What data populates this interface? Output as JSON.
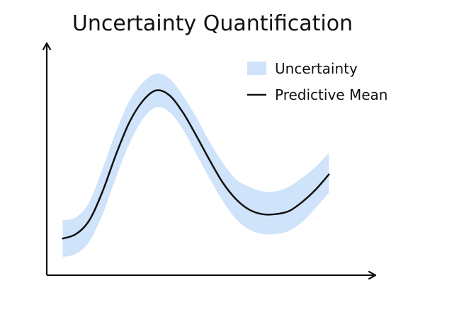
{
  "chart_data": {
    "type": "line",
    "title": "Uncertainty Quantification",
    "xlabel": "",
    "ylabel": "",
    "x": [
      0,
      1,
      2,
      3,
      4,
      5,
      6,
      7,
      8,
      9,
      10,
      11,
      12,
      13,
      14,
      15,
      16,
      17,
      18,
      19,
      20
    ],
    "xlim": [
      -1.2,
      23.5
    ],
    "ylim": [
      0,
      1.52
    ],
    "grid": false,
    "legend_position": "top-right",
    "series": [
      {
        "name": "Predictive Mean",
        "kind": "line",
        "color": "#111111",
        "values": [
          0.24,
          0.27,
          0.36,
          0.55,
          0.79,
          1.0,
          1.14,
          1.21,
          1.18,
          1.07,
          0.92,
          0.76,
          0.61,
          0.5,
          0.43,
          0.4,
          0.4,
          0.42,
          0.48,
          0.56,
          0.66
        ]
      },
      {
        "name": "Uncertainty",
        "kind": "band",
        "color": "#cfe3fa",
        "lower": [
          0.12,
          0.14,
          0.22,
          0.4,
          0.64,
          0.86,
          1.02,
          1.1,
          1.07,
          0.96,
          0.8,
          0.64,
          0.49,
          0.37,
          0.3,
          0.27,
          0.27,
          0.29,
          0.35,
          0.44,
          0.54
        ],
        "upper": [
          0.36,
          0.38,
          0.48,
          0.7,
          0.94,
          1.14,
          1.26,
          1.32,
          1.29,
          1.18,
          1.04,
          0.88,
          0.74,
          0.63,
          0.58,
          0.55,
          0.55,
          0.58,
          0.64,
          0.71,
          0.8
        ]
      }
    ]
  }
}
